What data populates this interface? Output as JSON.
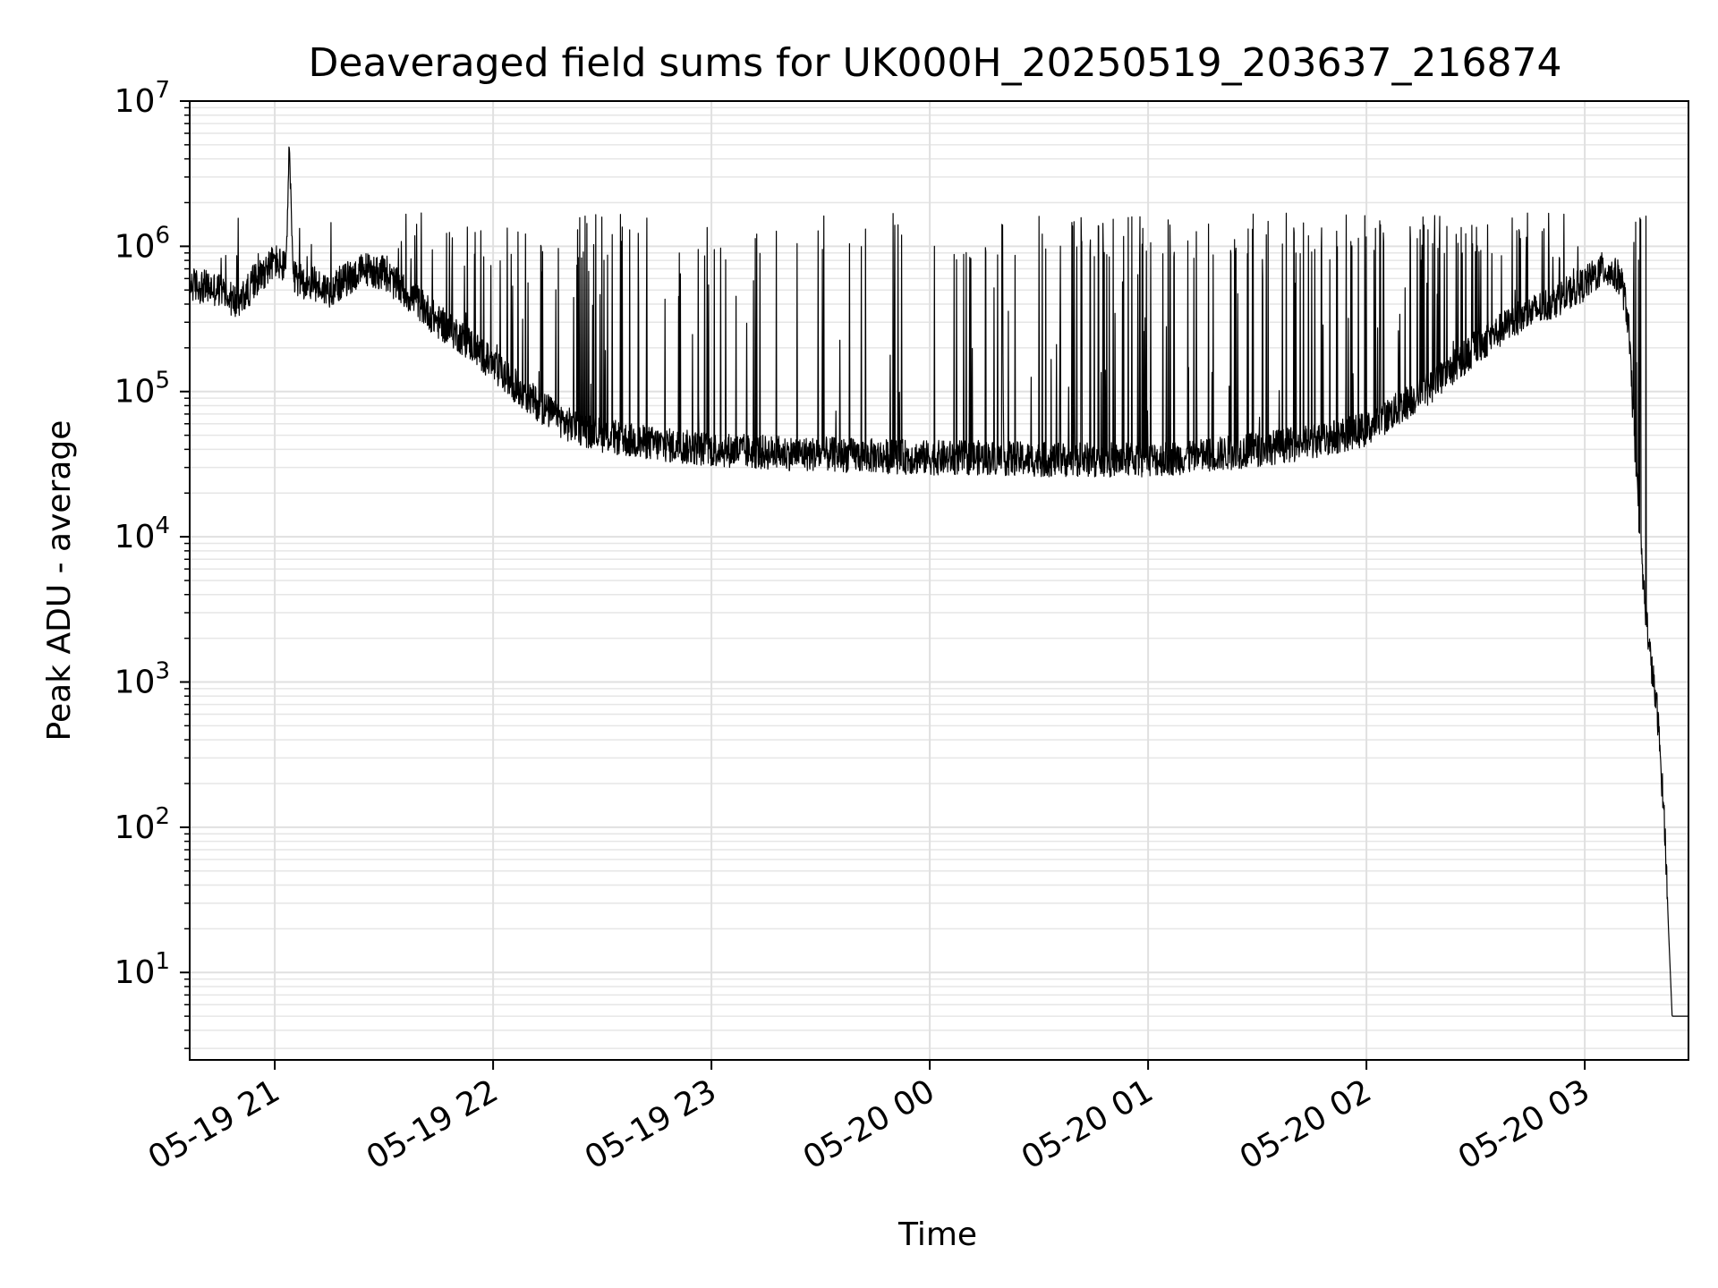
{
  "chart_data": {
    "type": "line",
    "title": "Deaveraged field sums for UK000H_20250519_203637_216874",
    "xlabel": "Time",
    "ylabel": "Peak ADU - average",
    "yscale": "log",
    "ylim": [
      2.5,
      10000000
    ],
    "xlim": [
      "2025-05-19 20:36:37",
      "2025-05-20 03:28:30"
    ],
    "grid": true,
    "line_color": "#000000",
    "x_ticks": [
      "2025-05-19 21:00",
      "2025-05-19 22:00",
      "2025-05-19 23:00",
      "2025-05-20 00:00",
      "2025-05-20 01:00",
      "2025-05-20 02:00",
      "2025-05-20 03:00"
    ],
    "x_tick_labels": [
      "05-19 21",
      "05-19 22",
      "05-19 23",
      "05-20 00",
      "05-20 01",
      "05-20 02",
      "05-20 03"
    ],
    "y_ticks": [
      10,
      100,
      1000,
      10000,
      100000,
      1000000,
      10000000
    ],
    "y_tick_labels": [
      {
        "base": "10",
        "exp": "1"
      },
      {
        "base": "10",
        "exp": "2"
      },
      {
        "base": "10",
        "exp": "3"
      },
      {
        "base": "10",
        "exp": "4"
      },
      {
        "base": "10",
        "exp": "5"
      },
      {
        "base": "10",
        "exp": "6"
      },
      {
        "base": "10",
        "exp": "7"
      }
    ],
    "series": [
      {
        "x": [
          "2025-05-19 20:36:37",
          "2025-05-19 20:45",
          "2025-05-19 20:50",
          "2025-05-19 20:55",
          "2025-05-19 21:00",
          "2025-05-19 21:03",
          "2025-05-19 21:04",
          "2025-05-19 21:05",
          "2025-05-19 21:10",
          "2025-05-19 21:15",
          "2025-05-19 21:20",
          "2025-05-19 21:25",
          "2025-05-19 21:30",
          "2025-05-19 21:35",
          "2025-05-19 21:40",
          "2025-05-19 21:45",
          "2025-05-19 21:50",
          "2025-05-19 21:55",
          "2025-05-19 22:00",
          "2025-05-19 22:10",
          "2025-05-19 22:20",
          "2025-05-19 22:30",
          "2025-05-19 22:40",
          "2025-05-19 22:50",
          "2025-05-19 23:00",
          "2025-05-19 23:15",
          "2025-05-19 23:30",
          "2025-05-19 23:45",
          "2025-05-20 00:00",
          "2025-05-20 00:15",
          "2025-05-20 00:30",
          "2025-05-20 00:45",
          "2025-05-20 01:00",
          "2025-05-20 01:15",
          "2025-05-20 01:30",
          "2025-05-20 01:45",
          "2025-05-20 02:00",
          "2025-05-20 02:10",
          "2025-05-20 02:20",
          "2025-05-20 02:30",
          "2025-05-20 02:40",
          "2025-05-20 02:50",
          "2025-05-20 03:00",
          "2025-05-20 03:05",
          "2025-05-20 03:10",
          "2025-05-20 03:12",
          "2025-05-20 03:14",
          "2025-05-20 03:16",
          "2025-05-20 03:18",
          "2025-05-20 03:20",
          "2025-05-20 03:22",
          "2025-05-20 03:23",
          "2025-05-20 03:24",
          "2025-05-20 03:25",
          "2025-05-20 03:26",
          "2025-05-20 03:28:30"
        ],
        "y": [
          550000,
          500000,
          400000,
          600000,
          800000,
          700000,
          5000000,
          600000,
          550000,
          500000,
          600000,
          700000,
          650000,
          500000,
          400000,
          300000,
          250000,
          200000,
          150000,
          90000,
          60000,
          50000,
          45000,
          42000,
          40000,
          38000,
          37000,
          36000,
          35000,
          35000,
          34000,
          34000,
          34000,
          36000,
          40000,
          45000,
          55000,
          80000,
          120000,
          200000,
          300000,
          400000,
          550000,
          700000,
          600000,
          300000,
          30000,
          5000,
          1500,
          600,
          100,
          20,
          5,
          5,
          5,
          5
        ]
      }
    ]
  }
}
